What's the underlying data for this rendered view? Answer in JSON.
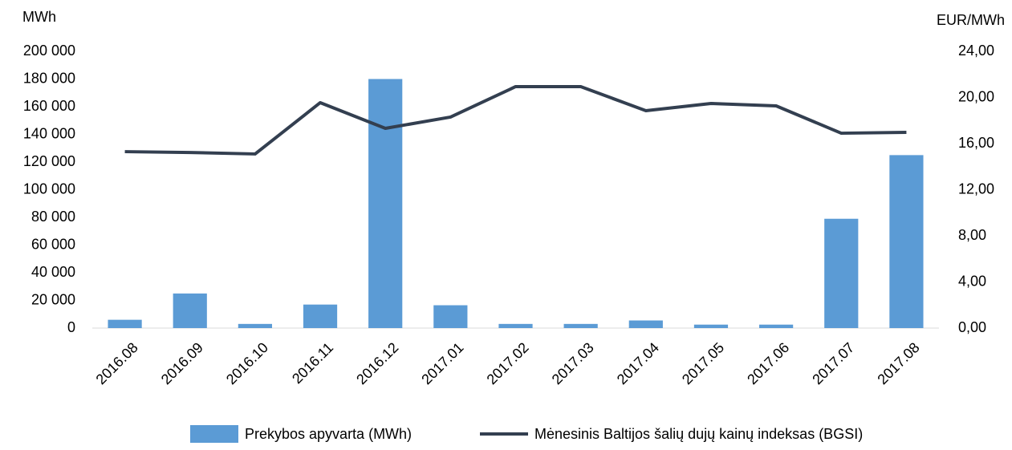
{
  "chart_data": {
    "type": "bar-line",
    "y_label": "MWh",
    "y2_label": "EUR/MWh",
    "categories": [
      "2016.08",
      "2016.09",
      "2016.10",
      "2016.11",
      "2016.12",
      "2017.01",
      "2017.02",
      "2017.03",
      "2017.04",
      "2017.05",
      "2017.06",
      "2017.07",
      "2017.08"
    ],
    "series": [
      {
        "name": "Prekybos apyvarta (MWh)",
        "type": "bar",
        "color": "#5b9bd5",
        "axis": "y",
        "values": [
          6000,
          25000,
          3000,
          17000,
          180000,
          16500,
          3000,
          3000,
          5500,
          2500,
          2500,
          79000,
          125000
        ]
      },
      {
        "name": "Mėnesinis Baltijos šalių dujų kainų indeksas (BGSI)",
        "type": "line",
        "color": "#333f50",
        "axis": "y2",
        "values": [
          15.3,
          15.23,
          15.1,
          19.55,
          17.32,
          18.3,
          20.94,
          20.94,
          18.85,
          19.48,
          19.27,
          16.9,
          16.97
        ]
      }
    ],
    "ylim": [
      0,
      200000
    ],
    "yticks": [
      0,
      {
        "value": 20000,
        "label": "20 000"
      },
      {
        "value": 40000,
        "label": "40 000"
      },
      {
        "value": 60000,
        "label": "60 000"
      },
      {
        "value": 80000,
        "label": "80 000"
      },
      {
        "value": 100000,
        "label": "100 000"
      },
      {
        "value": 120000,
        "label": "120 000"
      },
      {
        "value": 140000,
        "label": "140 000"
      },
      {
        "value": 160000,
        "label": "160 000"
      },
      {
        "value": 180000,
        "label": "180 000"
      },
      {
        "value": 200000,
        "label": "200 000"
      }
    ],
    "y2lim": [
      0,
      24
    ],
    "y2ticks": [
      {
        "value": 0,
        "label": "0,00"
      },
      {
        "value": 4,
        "label": "4,00"
      },
      {
        "value": 8,
        "label": "8,00"
      },
      {
        "value": 12,
        "label": "12,00"
      },
      {
        "value": 16,
        "label": "16,00"
      },
      {
        "value": 20,
        "label": "20,00"
      },
      {
        "value": 24,
        "label": "24,00"
      }
    ],
    "legend": "bottom"
  }
}
